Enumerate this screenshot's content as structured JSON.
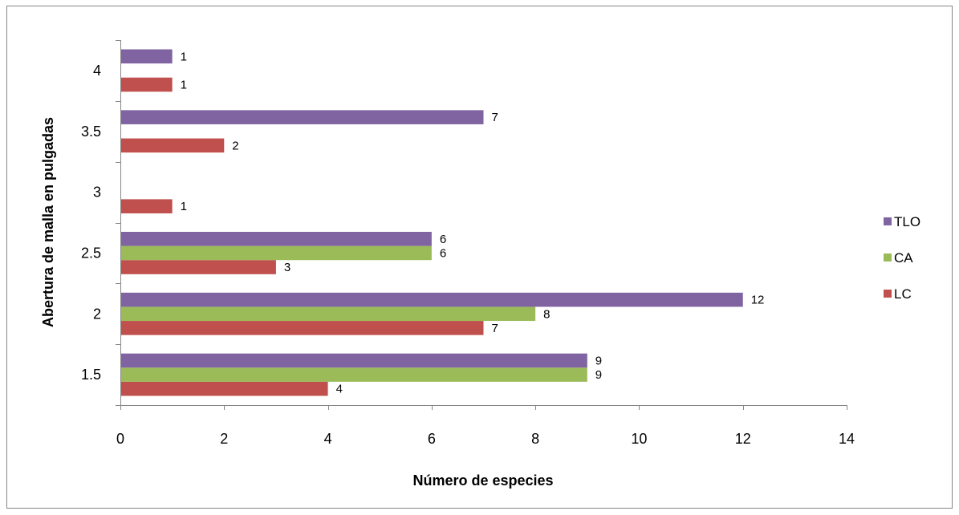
{
  "chart_data": {
    "type": "bar",
    "orientation": "horizontal",
    "categories": [
      "1.5",
      "2",
      "2.5",
      "3",
      "3.5",
      "4"
    ],
    "series": [
      {
        "name": "LC",
        "color": "#C0504D",
        "values": [
          4,
          7,
          3,
          1,
          2,
          1
        ]
      },
      {
        "name": "CA",
        "color": "#9BBB59",
        "values": [
          9,
          8,
          6,
          null,
          null,
          null
        ]
      },
      {
        "name": "TLO",
        "color": "#8064A2",
        "values": [
          9,
          12,
          6,
          null,
          7,
          1
        ]
      }
    ],
    "xlabel": "Número de especies",
    "ylabel": "Abertura de malla en pulgadas",
    "xlim": [
      0,
      14
    ],
    "xticks": [
      "0",
      "2",
      "4",
      "6",
      "8",
      "10",
      "12",
      "14"
    ],
    "grid": false,
    "legend_position": "right",
    "legend_order": [
      "TLO",
      "CA",
      "LC"
    ],
    "data_labels": true
  }
}
